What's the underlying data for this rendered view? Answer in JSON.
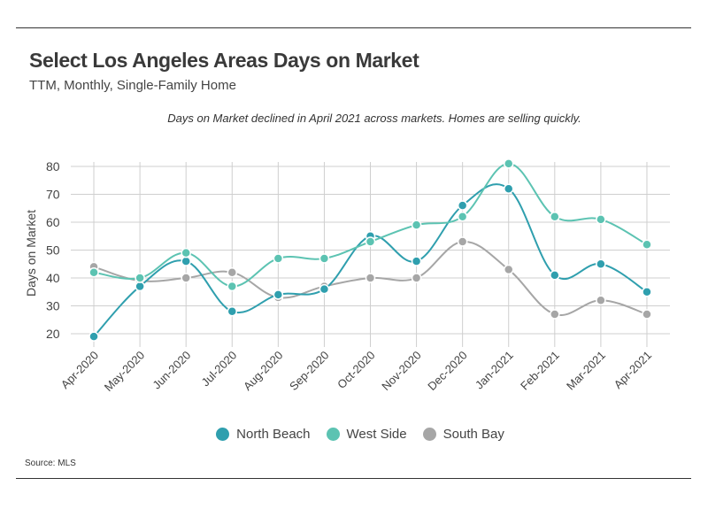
{
  "header": {
    "title": "Select Los Angeles Areas Days on Market",
    "subtitle": "TTM, Monthly, Single-Family Home",
    "annotation": "Days on Market declined in April 2021 across markets. Homes are selling quickly."
  },
  "footer": {
    "source": "Source: MLS"
  },
  "colors": {
    "north_beach": "#2f9fae",
    "west_side": "#5cc3b2",
    "south_bay": "#a6a6a6",
    "grid": "#cfcfcf"
  },
  "chart_data": {
    "type": "line",
    "title": "Select Los Angeles Areas Days on Market",
    "subtitle": "TTM, Monthly, Single-Family Home",
    "ylabel": "Days on Market",
    "xlabel": "",
    "ylim": [
      15,
      82
    ],
    "yticks": [
      20,
      30,
      40,
      50,
      60,
      70,
      80
    ],
    "grid": true,
    "legend": "bottom",
    "categories": [
      "Apr-2020",
      "May-2020",
      "Jun-2020",
      "Jul-2020",
      "Aug-2020",
      "Sep-2020",
      "Oct-2020",
      "Nov-2020",
      "Dec-2020",
      "Jan-2021",
      "Feb-2021",
      "Mar-2021",
      "Apr-2021"
    ],
    "series": [
      {
        "name": "North Beach",
        "color": "#2f9fae",
        "values": [
          19,
          37,
          46,
          28,
          34,
          36,
          55,
          46,
          66,
          72,
          41,
          45,
          35
        ]
      },
      {
        "name": "West Side",
        "color": "#5cc3b2",
        "values": [
          42,
          40,
          49,
          37,
          47,
          47,
          53,
          59,
          62,
          81,
          62,
          61,
          52
        ]
      },
      {
        "name": "South Bay",
        "color": "#a6a6a6",
        "values": [
          44,
          39,
          40,
          42,
          33,
          37,
          40,
          40,
          53,
          43,
          27,
          32,
          27
        ]
      }
    ]
  }
}
